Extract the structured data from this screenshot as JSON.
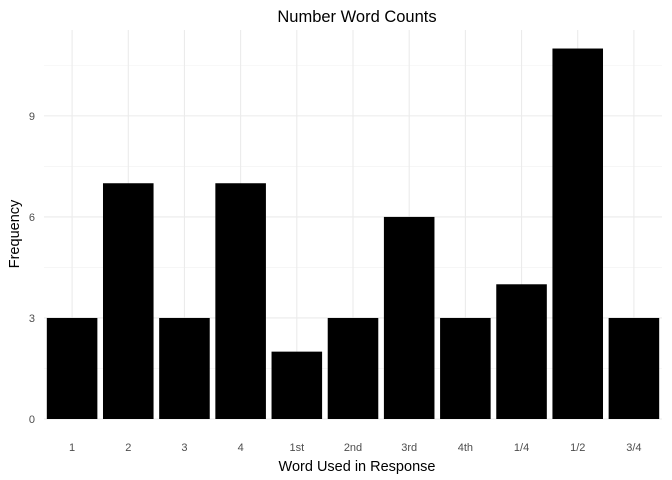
{
  "chart_data": {
    "type": "bar",
    "title": "Number Word Counts",
    "xlabel": "Word Used in Response",
    "ylabel": "Frequency",
    "categories": [
      "1",
      "2",
      "3",
      "4",
      "1st",
      "2nd",
      "3rd",
      "4th",
      "1/4",
      "1/2",
      "3/4"
    ],
    "values": [
      3,
      7,
      3,
      7,
      2,
      3,
      6,
      3,
      4,
      11,
      3
    ],
    "ylim": [
      0,
      11.55
    ],
    "yticks": [
      0,
      3,
      6,
      9
    ],
    "grid": true,
    "bar_color": "#000000"
  }
}
